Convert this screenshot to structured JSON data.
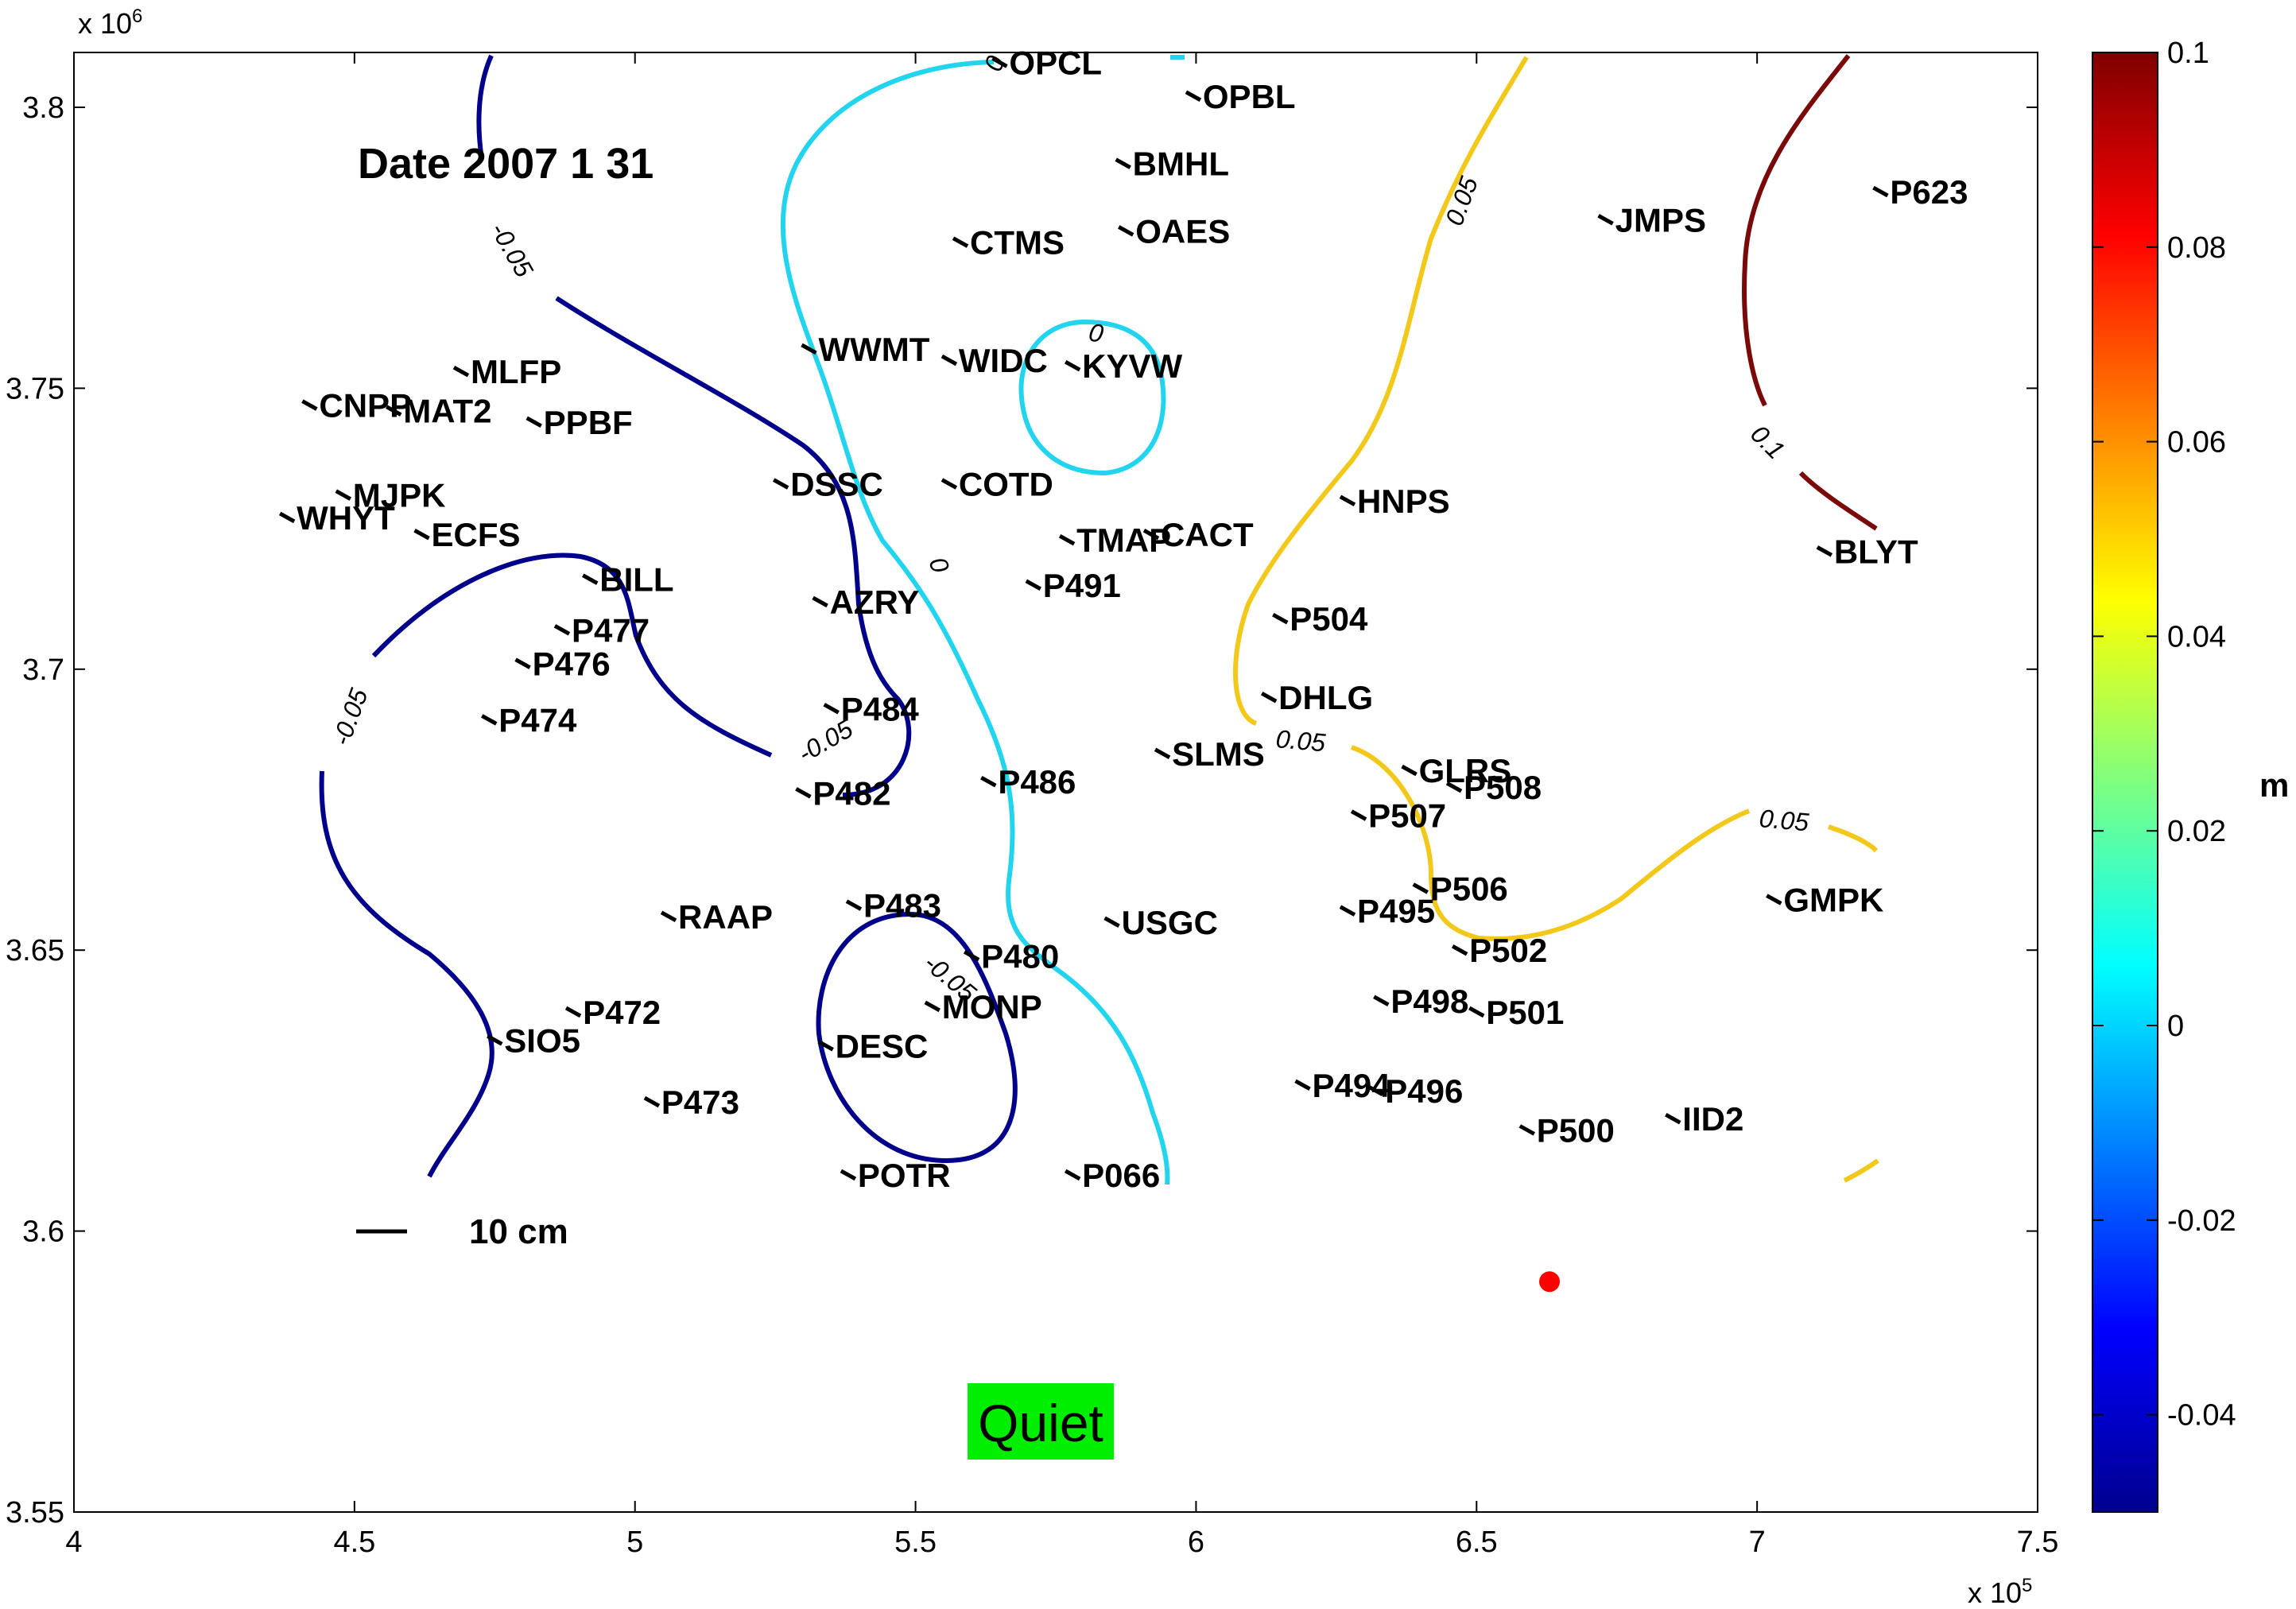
{
  "chart_data": {
    "type": "scatter",
    "title": "Date 2007 1 31",
    "x_exponent": "x 10",
    "x_exponent_power": "5",
    "y_exponent": "x 10",
    "y_exponent_power": "6",
    "xlim": [
      4.0,
      7.5
    ],
    "ylim": [
      3.55,
      3.81
    ],
    "x_ticks": [
      4,
      4.5,
      5,
      5.5,
      6,
      6.5,
      7,
      7.5
    ],
    "x_tick_labels": [
      "4",
      "4.5",
      "5",
      "5.5",
      "6",
      "6.5",
      "7",
      "7.5"
    ],
    "y_ticks": [
      3.55,
      3.6,
      3.65,
      3.7,
      3.75,
      3.8
    ],
    "y_tick_labels": [
      "3.55",
      "3.6",
      "3.65",
      "3.7",
      "3.75",
      "3.8"
    ],
    "stations": [
      {
        "name": "OPCL",
        "x": 5.65,
        "y": 3.808
      },
      {
        "name": "OPBL",
        "x": 5.995,
        "y": 3.802
      },
      {
        "name": "BMHL",
        "x": 5.87,
        "y": 3.79
      },
      {
        "name": "CTMS",
        "x": 5.58,
        "y": 3.776
      },
      {
        "name": "OAES",
        "x": 5.875,
        "y": 3.778
      },
      {
        "name": "JMPS",
        "x": 6.73,
        "y": 3.78
      },
      {
        "name": "P623",
        "x": 7.22,
        "y": 3.785
      },
      {
        "name": "WWMT",
        "x": 5.31,
        "y": 3.757
      },
      {
        "name": "WIDC",
        "x": 5.56,
        "y": 3.755
      },
      {
        "name": "KYVW",
        "x": 5.78,
        "y": 3.754
      },
      {
        "name": "MLFP",
        "x": 4.69,
        "y": 3.753
      },
      {
        "name": "CNPP",
        "x": 4.42,
        "y": 3.747
      },
      {
        "name": "MAT2",
        "x": 4.57,
        "y": 3.746
      },
      {
        "name": "PPBF",
        "x": 4.82,
        "y": 3.744
      },
      {
        "name": "DSSC",
        "x": 5.26,
        "y": 3.733
      },
      {
        "name": "COTD",
        "x": 5.56,
        "y": 3.733
      },
      {
        "name": "MJPK",
        "x": 4.48,
        "y": 3.731
      },
      {
        "name": "WHYT",
        "x": 4.38,
        "y": 3.727
      },
      {
        "name": "ECFS",
        "x": 4.62,
        "y": 3.724
      },
      {
        "name": "HNPS",
        "x": 6.27,
        "y": 3.73
      },
      {
        "name": "CACT",
        "x": 5.92,
        "y": 3.724
      },
      {
        "name": "TMAP",
        "x": 5.77,
        "y": 3.723
      },
      {
        "name": "BLYT",
        "x": 7.12,
        "y": 3.721
      },
      {
        "name": "BILL",
        "x": 4.92,
        "y": 3.716
      },
      {
        "name": "P491",
        "x": 5.71,
        "y": 3.715
      },
      {
        "name": "AZRY",
        "x": 5.33,
        "y": 3.712
      },
      {
        "name": "P477",
        "x": 4.87,
        "y": 3.707
      },
      {
        "name": "P504",
        "x": 6.15,
        "y": 3.709
      },
      {
        "name": "P476",
        "x": 4.8,
        "y": 3.701
      },
      {
        "name": "DHLG",
        "x": 6.13,
        "y": 3.695
      },
      {
        "name": "P484",
        "x": 5.35,
        "y": 3.693
      },
      {
        "name": "P474",
        "x": 4.74,
        "y": 3.691
      },
      {
        "name": "SLMS",
        "x": 5.94,
        "y": 3.685
      },
      {
        "name": "GLRS",
        "x": 6.38,
        "y": 3.682
      },
      {
        "name": "P508",
        "x": 6.46,
        "y": 3.679
      },
      {
        "name": "P486",
        "x": 5.63,
        "y": 3.68
      },
      {
        "name": "P482",
        "x": 5.3,
        "y": 3.678
      },
      {
        "name": "P507",
        "x": 6.29,
        "y": 3.674
      },
      {
        "name": "P506",
        "x": 6.4,
        "y": 3.661
      },
      {
        "name": "GMPK",
        "x": 7.03,
        "y": 3.659
      },
      {
        "name": "P483",
        "x": 5.39,
        "y": 3.658
      },
      {
        "name": "P495",
        "x": 6.27,
        "y": 3.657
      },
      {
        "name": "RAAP",
        "x": 5.06,
        "y": 3.656
      },
      {
        "name": "USGC",
        "x": 5.85,
        "y": 3.655
      },
      {
        "name": "P502",
        "x": 6.47,
        "y": 3.65
      },
      {
        "name": "P480",
        "x": 5.6,
        "y": 3.649
      },
      {
        "name": "P498",
        "x": 6.33,
        "y": 3.641
      },
      {
        "name": "MONP",
        "x": 5.53,
        "y": 3.64
      },
      {
        "name": "P472",
        "x": 4.89,
        "y": 3.639
      },
      {
        "name": "P501",
        "x": 6.5,
        "y": 3.639
      },
      {
        "name": "SIO5",
        "x": 4.75,
        "y": 3.634
      },
      {
        "name": "DESC",
        "x": 5.34,
        "y": 3.633
      },
      {
        "name": "P494",
        "x": 6.19,
        "y": 3.626
      },
      {
        "name": "P496",
        "x": 6.32,
        "y": 3.625
      },
      {
        "name": "P473",
        "x": 5.03,
        "y": 3.623
      },
      {
        "name": "IID2",
        "x": 6.85,
        "y": 3.62
      },
      {
        "name": "P500",
        "x": 6.59,
        "y": 3.618
      },
      {
        "name": "POTR",
        "x": 5.38,
        "y": 3.61
      },
      {
        "name": "P066",
        "x": 5.78,
        "y": 3.61
      }
    ],
    "epicenter": {
      "x": 6.63,
      "y": 3.591,
      "color": "#ff0000"
    },
    "contour_labels": [
      "0",
      "0",
      "0",
      "-0.05",
      "-0.05",
      "-0.05",
      "-0.05",
      "0.05",
      "0.05",
      "0.05",
      "0.1"
    ],
    "scale_bar_label": "10 cm",
    "colorbar": {
      "range": [
        -0.05,
        0.1
      ],
      "ticks": [
        "0.1",
        "0.08",
        "0.06",
        "0.04",
        "0.02",
        "0",
        "-0.02",
        "-0.04"
      ],
      "unit": "m",
      "colormap": "jet"
    },
    "status": {
      "label": "Quiet",
      "color": "#00ee00"
    },
    "colors": {
      "contour_neg": "#00008b",
      "contour_zero": "#22d4ee",
      "contour_pos": "#f2c81a",
      "contour_high": "#7a0a0a"
    }
  }
}
